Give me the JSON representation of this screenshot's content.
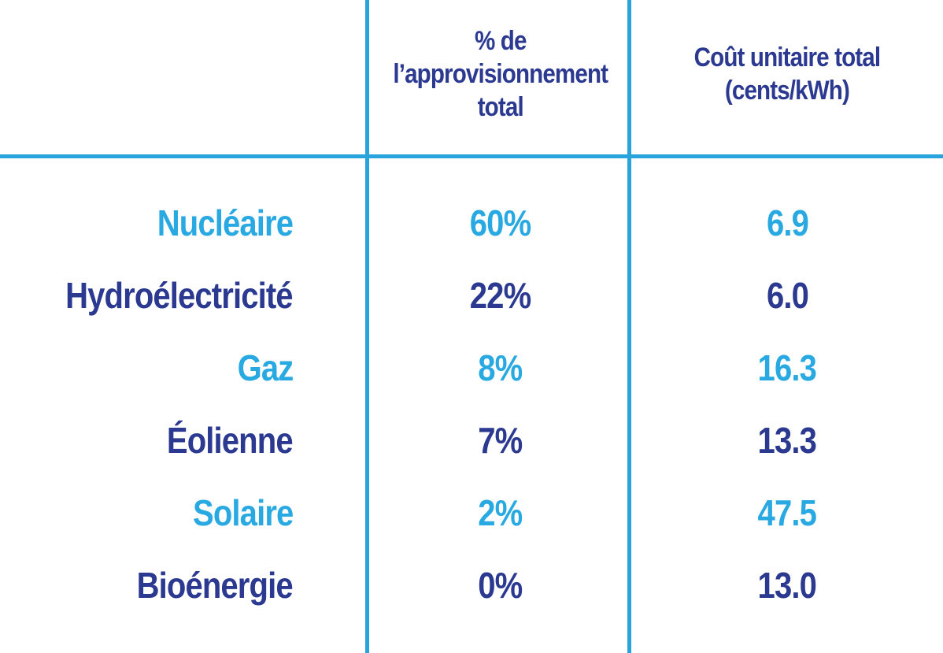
{
  "colors": {
    "light_blue": "#29A9E1",
    "dark_blue": "#2B3990",
    "line_blue": "#29A3DC",
    "background": "#FFFFFF"
  },
  "table": {
    "headers": {
      "source": "",
      "supply": "% de\nl’approvisionnement\ntotal",
      "cost": "Coût unitaire total\n(cents/kWh)"
    },
    "rows": [
      {
        "source": "Nucléaire",
        "supply": "60%",
        "cost": "6.9",
        "tone": "light"
      },
      {
        "source": "Hydroélectricité",
        "supply": "22%",
        "cost": "6.0",
        "tone": "dark"
      },
      {
        "source": "Gaz",
        "supply": "8%",
        "cost": "16.3",
        "tone": "light"
      },
      {
        "source": "Éolienne",
        "supply": "7%",
        "cost": "13.3",
        "tone": "dark"
      },
      {
        "source": "Solaire",
        "supply": "2%",
        "cost": "47.5",
        "tone": "light"
      },
      {
        "source": "Bioénergie",
        "supply": "0%",
        "cost": "13.0",
        "tone": "dark"
      }
    ]
  },
  "chart_data": {
    "type": "table",
    "title": "",
    "columns": [
      "",
      "% de l’approvisionnement total",
      "Coût unitaire total (cents/kWh)"
    ],
    "rows": [
      [
        "Nucléaire",
        "60%",
        6.9
      ],
      [
        "Hydroélectricité",
        "22%",
        6.0
      ],
      [
        "Gaz",
        "8%",
        16.3
      ],
      [
        "Éolienne",
        "7%",
        13.3
      ],
      [
        "Solaire",
        "2%",
        47.5
      ],
      [
        "Bioénergie",
        "0%",
        13.0
      ]
    ],
    "series": [
      {
        "name": "% de l’approvisionnement total",
        "values": [
          60,
          22,
          8,
          7,
          2,
          0
        ]
      },
      {
        "name": "Coût unitaire total (cents/kWh)",
        "values": [
          6.9,
          6.0,
          16.3,
          13.3,
          47.5,
          13.0
        ]
      }
    ],
    "categories": [
      "Nucléaire",
      "Hydroélectricité",
      "Gaz",
      "Éolienne",
      "Solaire",
      "Bioénergie"
    ]
  }
}
